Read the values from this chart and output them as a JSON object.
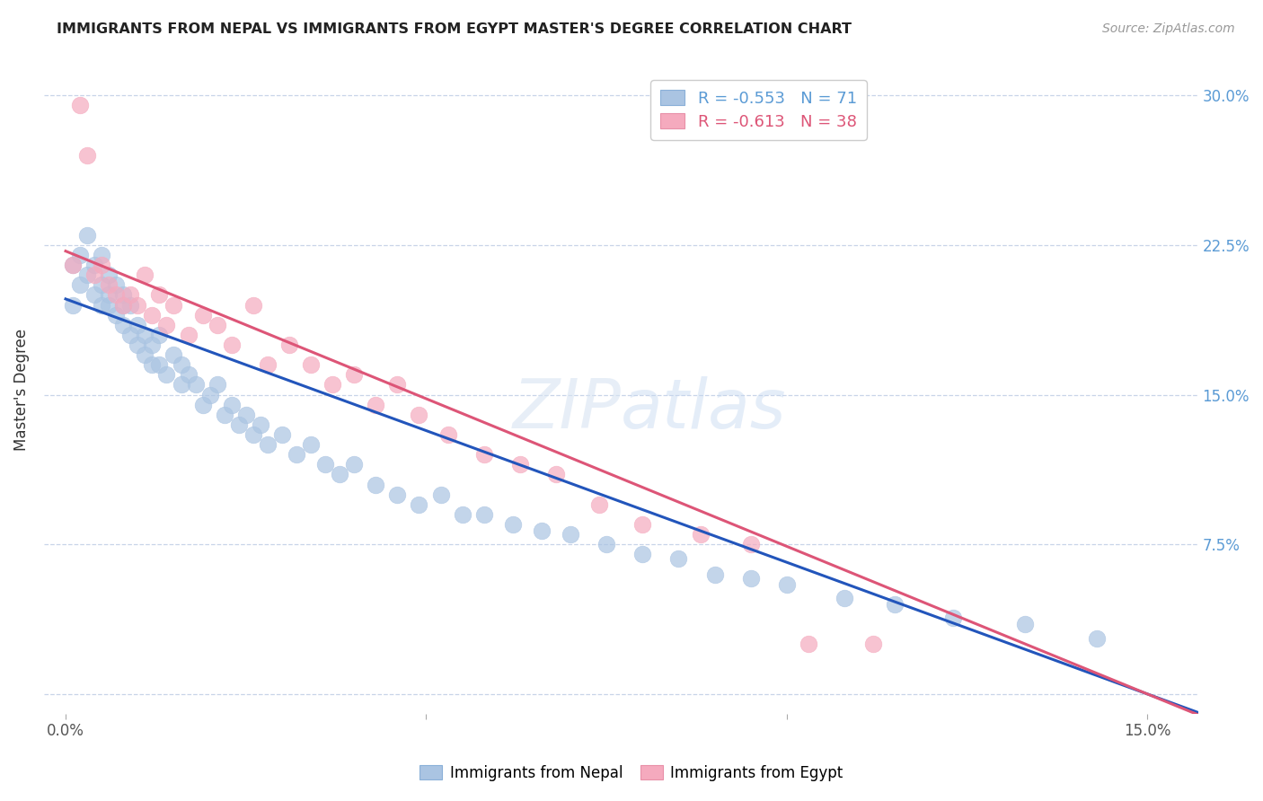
{
  "title": "IMMIGRANTS FROM NEPAL VS IMMIGRANTS FROM EGYPT MASTER'S DEGREE CORRELATION CHART",
  "source": "Source: ZipAtlas.com",
  "ylabel": "Master's Degree",
  "xlim": [
    -0.003,
    0.157
  ],
  "ylim": [
    -0.01,
    0.315
  ],
  "nepal_R": -0.553,
  "nepal_N": 71,
  "egypt_R": -0.613,
  "egypt_N": 38,
  "nepal_color": "#aac4e2",
  "egypt_color": "#f5aabe",
  "nepal_line_color": "#2255bb",
  "egypt_line_color": "#dd5577",
  "background_color": "#ffffff",
  "grid_color": "#c8d4e8",
  "nepal_line_intercept": 0.198,
  "nepal_line_slope": -1.32,
  "egypt_line_intercept": 0.222,
  "egypt_line_slope": -1.48,
  "nepal_x": [
    0.001,
    0.001,
    0.002,
    0.002,
    0.003,
    0.003,
    0.004,
    0.004,
    0.005,
    0.005,
    0.005,
    0.006,
    0.006,
    0.006,
    0.007,
    0.007,
    0.008,
    0.008,
    0.008,
    0.009,
    0.009,
    0.01,
    0.01,
    0.011,
    0.011,
    0.012,
    0.012,
    0.013,
    0.013,
    0.014,
    0.015,
    0.016,
    0.016,
    0.017,
    0.018,
    0.019,
    0.02,
    0.021,
    0.022,
    0.023,
    0.024,
    0.025,
    0.026,
    0.027,
    0.028,
    0.03,
    0.032,
    0.034,
    0.036,
    0.038,
    0.04,
    0.043,
    0.046,
    0.049,
    0.052,
    0.055,
    0.058,
    0.062,
    0.066,
    0.07,
    0.075,
    0.08,
    0.085,
    0.09,
    0.095,
    0.1,
    0.108,
    0.115,
    0.123,
    0.133,
    0.143
  ],
  "nepal_y": [
    0.195,
    0.215,
    0.205,
    0.22,
    0.21,
    0.23,
    0.2,
    0.215,
    0.195,
    0.205,
    0.22,
    0.2,
    0.21,
    0.195,
    0.205,
    0.19,
    0.195,
    0.185,
    0.2,
    0.18,
    0.195,
    0.185,
    0.175,
    0.18,
    0.17,
    0.175,
    0.165,
    0.165,
    0.18,
    0.16,
    0.17,
    0.165,
    0.155,
    0.16,
    0.155,
    0.145,
    0.15,
    0.155,
    0.14,
    0.145,
    0.135,
    0.14,
    0.13,
    0.135,
    0.125,
    0.13,
    0.12,
    0.125,
    0.115,
    0.11,
    0.115,
    0.105,
    0.1,
    0.095,
    0.1,
    0.09,
    0.09,
    0.085,
    0.082,
    0.08,
    0.075,
    0.07,
    0.068,
    0.06,
    0.058,
    0.055,
    0.048,
    0.045,
    0.038,
    0.035,
    0.028
  ],
  "egypt_x": [
    0.001,
    0.002,
    0.003,
    0.004,
    0.005,
    0.006,
    0.007,
    0.008,
    0.009,
    0.01,
    0.011,
    0.012,
    0.013,
    0.014,
    0.015,
    0.017,
    0.019,
    0.021,
    0.023,
    0.026,
    0.028,
    0.031,
    0.034,
    0.037,
    0.04,
    0.043,
    0.046,
    0.049,
    0.053,
    0.058,
    0.063,
    0.068,
    0.074,
    0.08,
    0.088,
    0.095,
    0.103,
    0.112
  ],
  "egypt_y": [
    0.215,
    0.295,
    0.27,
    0.21,
    0.215,
    0.205,
    0.2,
    0.195,
    0.2,
    0.195,
    0.21,
    0.19,
    0.2,
    0.185,
    0.195,
    0.18,
    0.19,
    0.185,
    0.175,
    0.195,
    0.165,
    0.175,
    0.165,
    0.155,
    0.16,
    0.145,
    0.155,
    0.14,
    0.13,
    0.12,
    0.115,
    0.11,
    0.095,
    0.085,
    0.08,
    0.075,
    0.025,
    0.025
  ]
}
